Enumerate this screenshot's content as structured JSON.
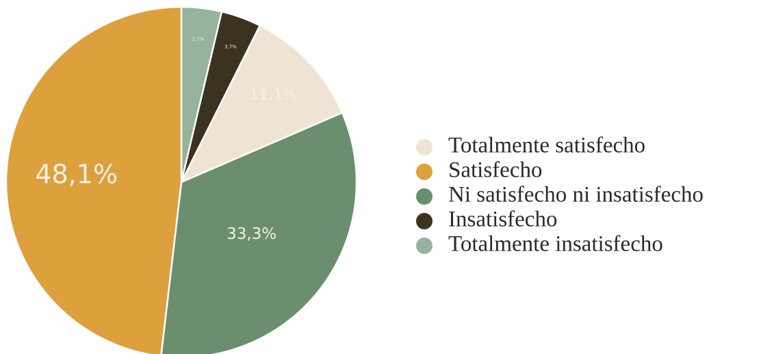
{
  "chart_data": {
    "type": "pie",
    "slices": [
      {
        "label": "Totalmente satisfecho",
        "value": 11.1,
        "value_label": "11,1%",
        "color": "#efe4d3"
      },
      {
        "label": "Satisfecho",
        "value": 48.1,
        "value_label": "48,1%",
        "color": "#dda03c"
      },
      {
        "label": "Ni satisfecho ni insatisfecho",
        "value": 33.3,
        "value_label": "33,3%",
        "color": "#6a8e6e"
      },
      {
        "label": "Insatisfecho",
        "value": 3.7,
        "value_label": "3,7%",
        "color": "#3b3220"
      },
      {
        "label": "Totalmente insatisfecho",
        "value": 3.7,
        "value_label": "3,7%",
        "color": "#95b39d"
      }
    ],
    "legend_position": "right"
  }
}
